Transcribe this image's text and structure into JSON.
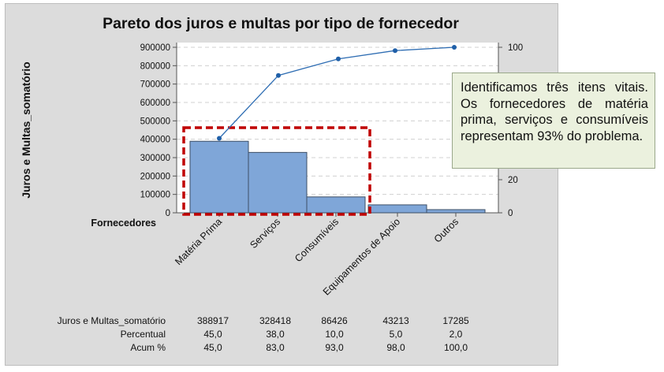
{
  "chart_data": {
    "type": "pareto",
    "title": "Pareto dos juros e multas por tipo de fornecedor",
    "ylabel": "Juros e Multas_somatório",
    "xlabel": "Fornecedores",
    "categories": [
      "Matéria Prima",
      "Serviços",
      "Consumíveis",
      "Equipamentos de Apoio",
      "Outros"
    ],
    "ylim_left": [
      0,
      900000
    ],
    "yticks_left": [
      0,
      100000,
      200000,
      300000,
      400000,
      500000,
      600000,
      700000,
      800000,
      900000
    ],
    "ylim_right": [
      0,
      100
    ],
    "yticks_right": [
      0,
      20,
      100
    ],
    "grid": "horizontal-dashed",
    "series": [
      {
        "name": "Juros e Multas_somatório",
        "type": "bar",
        "values": [
          388917,
          328418,
          86426,
          43213,
          17285
        ],
        "color": "#7fa6d8"
      },
      {
        "name": "Acum %",
        "type": "line",
        "values": [
          45.0,
          83.0,
          93.0,
          98.0,
          100.0
        ],
        "color": "#2e6db3"
      }
    ],
    "table": {
      "rows": [
        {
          "label": "Juros e Multas_somatório",
          "values": [
            "388917",
            "328418",
            "86426",
            "43213",
            "17285"
          ]
        },
        {
          "label": "Percentual",
          "values": [
            "45,0",
            "38,0",
            "10,0",
            "5,0",
            "2,0"
          ]
        },
        {
          "label": "Acum %",
          "values": [
            "45,0",
            "83,0",
            "93,0",
            "98,0",
            "100,0"
          ]
        }
      ]
    },
    "highlight": {
      "categories": [
        "Matéria Prima",
        "Serviços",
        "Consumíveis"
      ],
      "color": "#c00000",
      "style": "dashed"
    }
  },
  "callout": {
    "text": "Identificamos três itens vitais. Os fornecedores de matéria prima, serviços e consumíveis representam 93% do problema."
  }
}
